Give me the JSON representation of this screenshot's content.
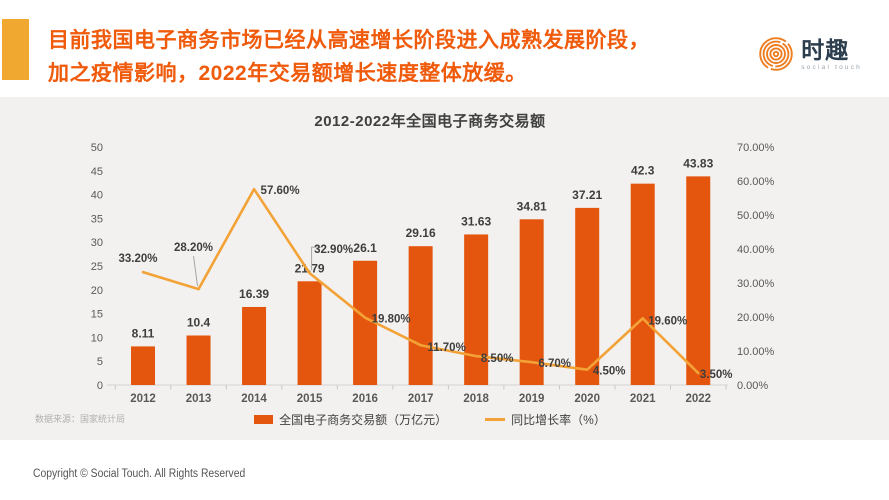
{
  "header": {
    "title_line1": "目前我国电子商务市场已经从高速增长阶段进入成熟发展阶段，",
    "title_line2": "加之疫情影响，2022年交易额增长速度整体放缓。",
    "title_color": "#f05a0b",
    "accent_color": "#f0a830",
    "logo": {
      "name": "时趣",
      "subtitle": "social touch",
      "ring_color": "#ee7e22"
    }
  },
  "chart_data": {
    "type": "combo",
    "title": "2012-2022年全国电子商务交易额",
    "categories": [
      "2012",
      "2013",
      "2014",
      "2015",
      "2016",
      "2017",
      "2018",
      "2019",
      "2020",
      "2021",
      "2022"
    ],
    "series": [
      {
        "name": "全国电子商务交易额（万亿元）",
        "chart_type": "bar",
        "axis": "left",
        "color": "#e4560e",
        "values": [
          8.11,
          10.4,
          16.39,
          21.79,
          26.1,
          29.16,
          31.63,
          34.81,
          37.21,
          42.3,
          43.83
        ],
        "labels": [
          "8.11",
          "10.4",
          "16.39",
          "21.79",
          "26.1",
          "29.16",
          "31.63",
          "34.81",
          "37.21",
          "42.3",
          "43.83"
        ]
      },
      {
        "name": "同比增长率（%）",
        "chart_type": "line",
        "axis": "right",
        "color": "#f3a237",
        "values": [
          33.2,
          28.2,
          57.6,
          32.9,
          19.8,
          11.7,
          8.5,
          6.7,
          4.5,
          19.6,
          3.5
        ],
        "labels": [
          "33.20%",
          "28.20%",
          "57.60%",
          "32.90%",
          "19.80%",
          "11.70%",
          "8.50%",
          "6.70%",
          "4.50%",
          "19.60%",
          "3.50%"
        ]
      }
    ],
    "left_axis": {
      "min": 0,
      "max": 50,
      "ticks": [
        "0",
        "5",
        "10",
        "15",
        "20",
        "25",
        "30",
        "35",
        "40",
        "45",
        "50"
      ]
    },
    "right_axis": {
      "min": 0,
      "max": 70,
      "ticks": [
        "0.00%",
        "10.00%",
        "20.00%",
        "30.00%",
        "40.00%",
        "50.00%",
        "60.00%",
        "70.00%"
      ]
    },
    "grid": false,
    "legend_position": "bottom",
    "panel_background": "#f2f1ef",
    "source_note": "数据来源：国家统计局"
  },
  "footer": {
    "copyright": "Copyright © Social Touch. All Rights Reserved"
  }
}
